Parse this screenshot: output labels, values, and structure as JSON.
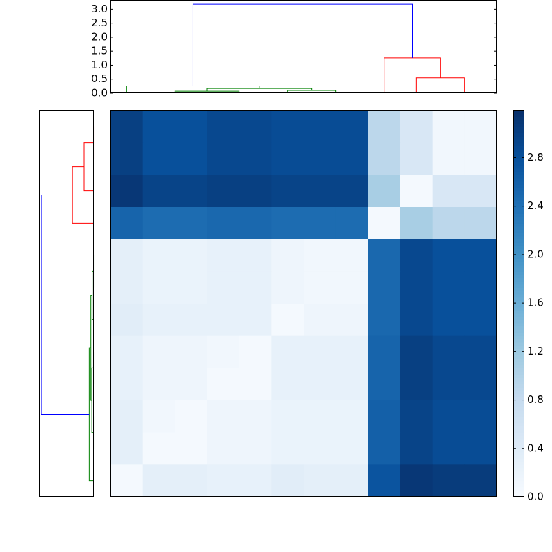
{
  "chart_data": [
    {
      "type": "heatmap",
      "values": [
        [
          3.0,
          2.8,
          2.8,
          2.9,
          2.9,
          2.85,
          2.85,
          2.85,
          0.9,
          0.5,
          0.1,
          0.1
        ],
        [
          3.0,
          2.8,
          2.8,
          2.9,
          2.9,
          2.85,
          2.85,
          2.85,
          0.9,
          0.5,
          0.1,
          0.1
        ],
        [
          3.1,
          2.95,
          2.95,
          3.0,
          3.0,
          2.95,
          2.95,
          2.95,
          1.1,
          0.05,
          0.5,
          0.5
        ],
        [
          2.55,
          2.45,
          2.45,
          2.5,
          2.5,
          2.45,
          2.45,
          2.45,
          0.05,
          1.1,
          0.9,
          0.9
        ],
        [
          0.3,
          0.2,
          0.2,
          0.25,
          0.25,
          0.15,
          0.1,
          0.1,
          2.5,
          2.9,
          2.8,
          2.8
        ],
        [
          0.3,
          0.2,
          0.2,
          0.25,
          0.25,
          0.15,
          0.1,
          0.1,
          2.5,
          2.9,
          2.8,
          2.8
        ],
        [
          0.35,
          0.25,
          0.25,
          0.25,
          0.25,
          0.05,
          0.15,
          0.15,
          2.5,
          2.9,
          2.8,
          2.8
        ],
        [
          0.25,
          0.15,
          0.15,
          0.1,
          0.05,
          0.25,
          0.25,
          0.25,
          2.55,
          3.0,
          2.9,
          2.9
        ],
        [
          0.25,
          0.15,
          0.15,
          0.05,
          0.05,
          0.25,
          0.25,
          0.25,
          2.55,
          3.0,
          2.9,
          2.9
        ],
        [
          0.3,
          0.1,
          0.05,
          0.15,
          0.15,
          0.2,
          0.2,
          0.2,
          2.6,
          2.95,
          2.85,
          2.85
        ],
        [
          0.3,
          0.05,
          0.05,
          0.15,
          0.15,
          0.2,
          0.2,
          0.2,
          2.6,
          2.95,
          2.85,
          2.85
        ],
        [
          0.05,
          0.3,
          0.3,
          0.25,
          0.25,
          0.35,
          0.3,
          0.3,
          2.75,
          3.1,
          3.05,
          3.05
        ]
      ],
      "colormap": [
        "#f7fbff",
        "#deebf7",
        "#c6dbef",
        "#9ecae1",
        "#6baed6",
        "#4292c6",
        "#2171b5",
        "#08519c",
        "#08306b"
      ],
      "clim": [
        0,
        3.19
      ],
      "cticks": [
        {
          "value": 0,
          "label": "0.0"
        },
        0.4,
        0.8,
        1.2,
        1.6,
        {
          "value": 2,
          "label": "2.0"
        },
        2.4,
        2.8
      ]
    },
    {
      "type": "dendrogram",
      "orientation": "top",
      "xlim": [
        -0.5,
        11.5
      ],
      "ylim": [
        0,
        3.33
      ],
      "yticks": [
        {
          "value": 0,
          "label": "0.0"
        },
        0.5,
        {
          "value": 1,
          "label": "1.0"
        },
        1.5,
        {
          "value": 2,
          "label": "2.0"
        },
        2.5,
        {
          "value": 3,
          "label": "3.0"
        }
      ],
      "links": [
        {
          "x": [
            1,
            1,
            2,
            2
          ],
          "y": [
            0,
            0.02,
            0.02,
            0
          ],
          "color": "#008000"
        },
        {
          "x": [
            3,
            3,
            4,
            4
          ],
          "y": [
            0,
            0.02,
            0.02,
            0
          ],
          "color": "#008000"
        },
        {
          "x": [
            1.5,
            1.5,
            3.5,
            3.5
          ],
          "y": [
            0.02,
            0.07,
            0.07,
            0.02
          ],
          "color": "#008000"
        },
        {
          "x": [
            6,
            6,
            7,
            7
          ],
          "y": [
            0,
            0.02,
            0.02,
            0
          ],
          "color": "#008000"
        },
        {
          "x": [
            5,
            5,
            6.5,
            6.5
          ],
          "y": [
            0,
            0.1,
            0.1,
            0.02
          ],
          "color": "#008000"
        },
        {
          "x": [
            2.5,
            2.5,
            5.75,
            5.75
          ],
          "y": [
            0.07,
            0.17,
            0.17,
            0.1
          ],
          "color": "#008000"
        },
        {
          "x": [
            0,
            0,
            4.125,
            4.125
          ],
          "y": [
            0,
            0.26,
            0.26,
            0.17
          ],
          "color": "#008000"
        },
        {
          "x": [
            10,
            10,
            11,
            11
          ],
          "y": [
            0,
            0.02,
            0.02,
            0
          ],
          "color": "#ff0000"
        },
        {
          "x": [
            9,
            9,
            10.5,
            10.5
          ],
          "y": [
            0,
            0.55,
            0.55,
            0.02
          ],
          "color": "#ff0000"
        },
        {
          "x": [
            8,
            8,
            9.75,
            9.75
          ],
          "y": [
            0,
            1.26,
            1.26,
            0.55
          ],
          "color": "#ff0000"
        },
        {
          "x": [
            2.06,
            2.06,
            8.875,
            8.875
          ],
          "y": [
            0.26,
            3.18,
            3.18,
            1.26
          ],
          "color": "#0000ff"
        }
      ]
    },
    {
      "type": "dendrogram",
      "orientation": "left",
      "xlim": [
        3.33,
        0
      ],
      "ylim": [
        -0.5,
        11.5
      ],
      "links": [
        {
          "y": [
            0,
            0,
            1,
            1
          ],
          "x": [
            0,
            0.02,
            0.02,
            0
          ],
          "color": "#ff0000"
        },
        {
          "y": [
            0.5,
            0.5,
            2,
            2
          ],
          "x": [
            0.02,
            0.59,
            0.59,
            0
          ],
          "color": "#ff0000"
        },
        {
          "y": [
            1.25,
            1.25,
            3,
            3
          ],
          "x": [
            0.59,
            1.3,
            1.3,
            0
          ],
          "color": "#ff0000"
        },
        {
          "y": [
            4,
            4,
            5,
            5
          ],
          "x": [
            0,
            0.02,
            0.02,
            0
          ],
          "color": "#008000"
        },
        {
          "y": [
            4.5,
            4.5,
            6,
            6
          ],
          "x": [
            0.02,
            0.1,
            0.1,
            0
          ],
          "color": "#008000"
        },
        {
          "y": [
            7,
            7,
            8,
            8
          ],
          "x": [
            0,
            0.02,
            0.02,
            0
          ],
          "color": "#008000"
        },
        {
          "y": [
            9,
            9,
            10,
            10
          ],
          "x": [
            0,
            0.02,
            0.02,
            0
          ],
          "color": "#008000"
        },
        {
          "y": [
            7.5,
            7.5,
            9.5,
            9.5
          ],
          "x": [
            0.02,
            0.12,
            0.12,
            0.02
          ],
          "color": "#008000"
        },
        {
          "y": [
            5.25,
            5.25,
            8.5,
            8.5
          ],
          "x": [
            0.1,
            0.18,
            0.18,
            0.12
          ],
          "color": "#008000"
        },
        {
          "y": [
            6.875,
            6.875,
            11,
            11
          ],
          "x": [
            0.18,
            0.28,
            0.28,
            0
          ],
          "color": "#008000"
        },
        {
          "y": [
            2.125,
            2.125,
            8.94,
            8.94
          ],
          "x": [
            1.3,
            3.2,
            3.2,
            0.28
          ],
          "color": "#0000ff"
        }
      ]
    }
  ]
}
